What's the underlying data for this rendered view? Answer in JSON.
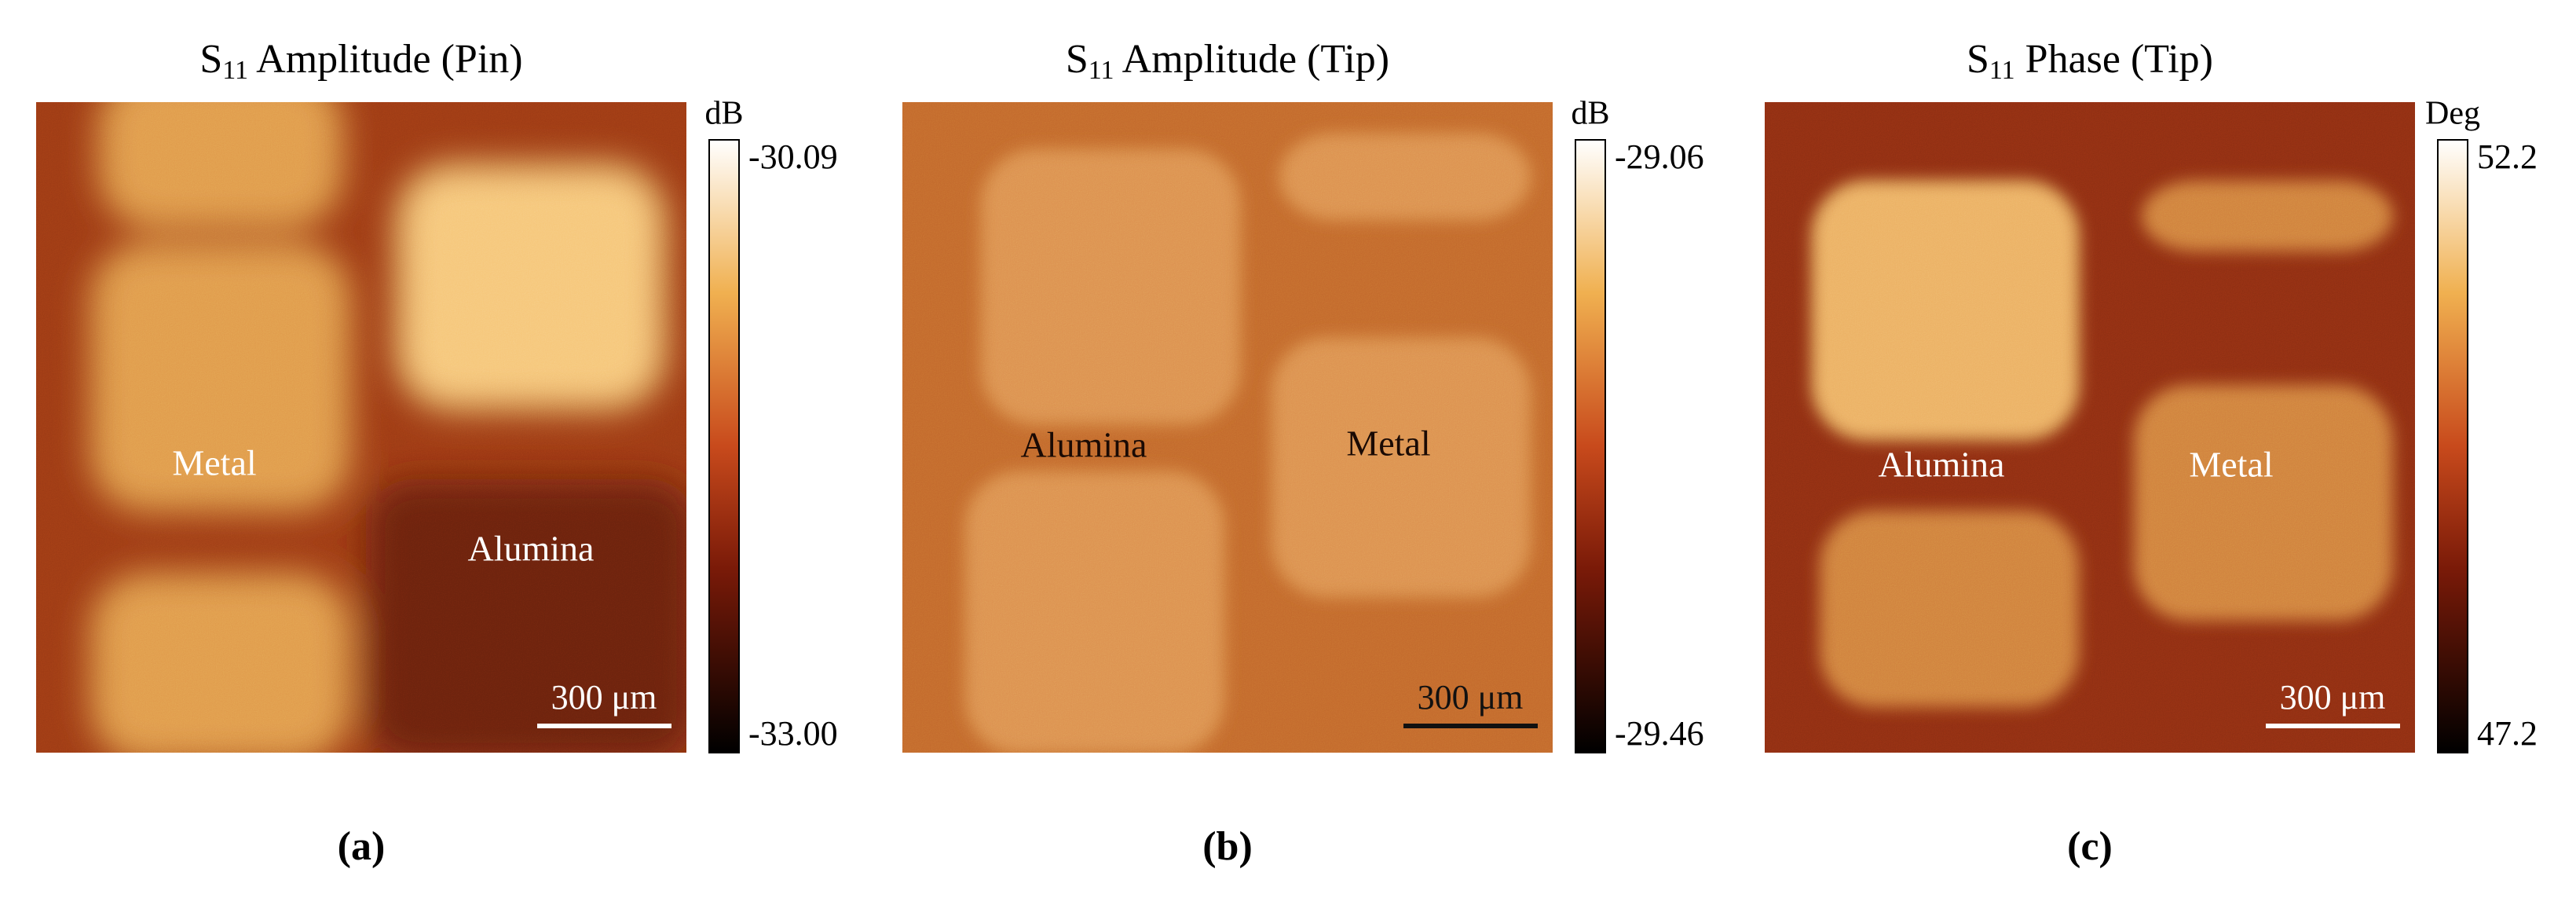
{
  "panels": [
    {
      "title": {
        "symbol": "S",
        "subscript": "11",
        "rest": " Amplitude (Pin)"
      },
      "colorbar": {
        "unit": "dB",
        "max": "-30.09",
        "min": "-33.00"
      },
      "regions": [
        "Metal",
        "Alumina"
      ],
      "scale_bar": "300 μm",
      "caption": "(a)"
    },
    {
      "title": {
        "symbol": "S",
        "subscript": "11",
        "rest": " Amplitude (Tip)"
      },
      "colorbar": {
        "unit": "dB",
        "max": "-29.06",
        "min": "-29.46"
      },
      "regions": [
        "Alumina",
        "Metal"
      ],
      "scale_bar": "300 μm",
      "caption": "(b)"
    },
    {
      "title": {
        "symbol": "S",
        "subscript": "11",
        "rest": " Phase (Tip)"
      },
      "colorbar": {
        "unit": "Deg",
        "max": "52.2",
        "min": "47.2"
      },
      "regions": [
        "Alumina",
        "Metal"
      ],
      "scale_bar": "300 μm",
      "caption": "(c)"
    }
  ]
}
